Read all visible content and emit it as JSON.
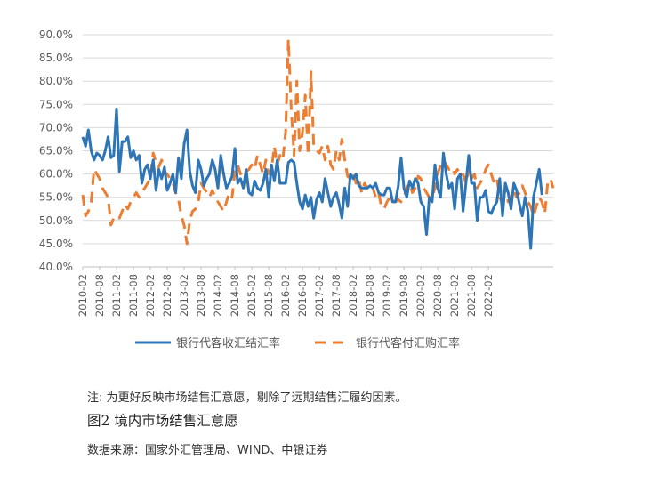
{
  "chart_data": {
    "type": "line",
    "title": "",
    "xlabel": "",
    "ylabel": "",
    "ylim": [
      40,
      90
    ],
    "y_ticks": [
      "40.0%",
      "45.0%",
      "50.0%",
      "55.0%",
      "60.0%",
      "65.0%",
      "70.0%",
      "75.0%",
      "80.0%",
      "85.0%",
      "90.0%"
    ],
    "x_ticks": [
      "2010-02",
      "2010-08",
      "2011-02",
      "2011-08",
      "2012-02",
      "2012-08",
      "2013-02",
      "2013-08",
      "2014-02",
      "2014-08",
      "2015-02",
      "2015-08",
      "2016-02",
      "2016-08",
      "2017-02",
      "2017-08",
      "2018-02",
      "2018-08",
      "2019-02",
      "2019-08",
      "2020-02",
      "2020-08",
      "2021-02",
      "2021-08",
      "2022-02"
    ],
    "x_start": "2010-02",
    "grid": true,
    "legend_position": "bottom",
    "series": [
      {
        "name": "银行代客收汇结汇率",
        "color": "#2E75B6",
        "style": "solid",
        "values": [
          68,
          66,
          69.5,
          65,
          63,
          64.5,
          64,
          63,
          65,
          68,
          63.5,
          64,
          74,
          60.5,
          67,
          67,
          68,
          63.5,
          65,
          63,
          64,
          58,
          61,
          62,
          59,
          63,
          56.5,
          61,
          59,
          61.5,
          56.5,
          58,
          60,
          56,
          63.5,
          59,
          66.5,
          69.5,
          60.5,
          57.5,
          56,
          63,
          61,
          57.5,
          59,
          60,
          63,
          61,
          57,
          64,
          60,
          57,
          58,
          59.5,
          65.5,
          58,
          59,
          57,
          61,
          56,
          55.5,
          58.5,
          57,
          56.5,
          58,
          61,
          55,
          62,
          58.5,
          63,
          58,
          58,
          58,
          62.5,
          63,
          62.5,
          58,
          54,
          52.5,
          55.5,
          53,
          55,
          50.5,
          54.5,
          56,
          54,
          59,
          56,
          53,
          55,
          56,
          53.5,
          50.5,
          57,
          53,
          60,
          59,
          60,
          57.5,
          57,
          57,
          57,
          57.5,
          57,
          58,
          56,
          55.5,
          55.5,
          57,
          57,
          54,
          54,
          57.5,
          63.5,
          57,
          55,
          58.5,
          57,
          59,
          58,
          54,
          53,
          47,
          55,
          54,
          62,
          57,
          55,
          64.5,
          60,
          57,
          58,
          52.5,
          59,
          60,
          52,
          58,
          64,
          58,
          58,
          50,
          55,
          55,
          56.5,
          52,
          51.5,
          53,
          54,
          59,
          51,
          58,
          56,
          52.5,
          58,
          56.5,
          53.5,
          51,
          55,
          52,
          44,
          55,
          58,
          61,
          55.5
        ]
      },
      {
        "name": "银行代客付汇购汇率",
        "color": "#ED7D31",
        "style": "dashed",
        "values": [
          55.5,
          51,
          52,
          54,
          61,
          60,
          59,
          57,
          56,
          55,
          49,
          50.5,
          51,
          50.5,
          52,
          53.5,
          52.5,
          54,
          55,
          56,
          55,
          56,
          57,
          58,
          59,
          64.5,
          62.5,
          61.5,
          63,
          60.5,
          60,
          59,
          58,
          56,
          54.5,
          51,
          49,
          45,
          50,
          52,
          52.5,
          54,
          58,
          57,
          56,
          55,
          56.5,
          55,
          54,
          53,
          52,
          54,
          56,
          55,
          60.5,
          62,
          60,
          61,
          60.5,
          61,
          62,
          61,
          64,
          62,
          60,
          63,
          60,
          61,
          66,
          62,
          64,
          63,
          69,
          89,
          74,
          64,
          80,
          65,
          69,
          77,
          64,
          82,
          66,
          65,
          64.5,
          66,
          63,
          66,
          62,
          61,
          65,
          63,
          67.5,
          63,
          59.5,
          59,
          60,
          58,
          59,
          56,
          58,
          57,
          58,
          57,
          55,
          56,
          53,
          52.5,
          54,
          55,
          55,
          54,
          54.5,
          54,
          55,
          57,
          58,
          56,
          57,
          59.5,
          59,
          57,
          56,
          55,
          55,
          57,
          60,
          62,
          63,
          62,
          61,
          61.5,
          60,
          61,
          59.5,
          60,
          58,
          61,
          59,
          60,
          57,
          58,
          59,
          61,
          62,
          60,
          58,
          59,
          55,
          53.5,
          57,
          54,
          55,
          56.5,
          55,
          56,
          57.5,
          56,
          54,
          53,
          51,
          53,
          55,
          54,
          51.5,
          58,
          59,
          57
        ]
      }
    ]
  },
  "legend": {
    "series1": "银行代客收汇结汇率",
    "series2": "银行代客付汇购汇率"
  },
  "note": "注: 为更好反映市场结售汇意愿，剔除了远期结售汇履约因素。",
  "figure_title": "图2  境内市场结售汇意愿",
  "source": "数据来源：国家外汇管理局、WIND、中银证券"
}
